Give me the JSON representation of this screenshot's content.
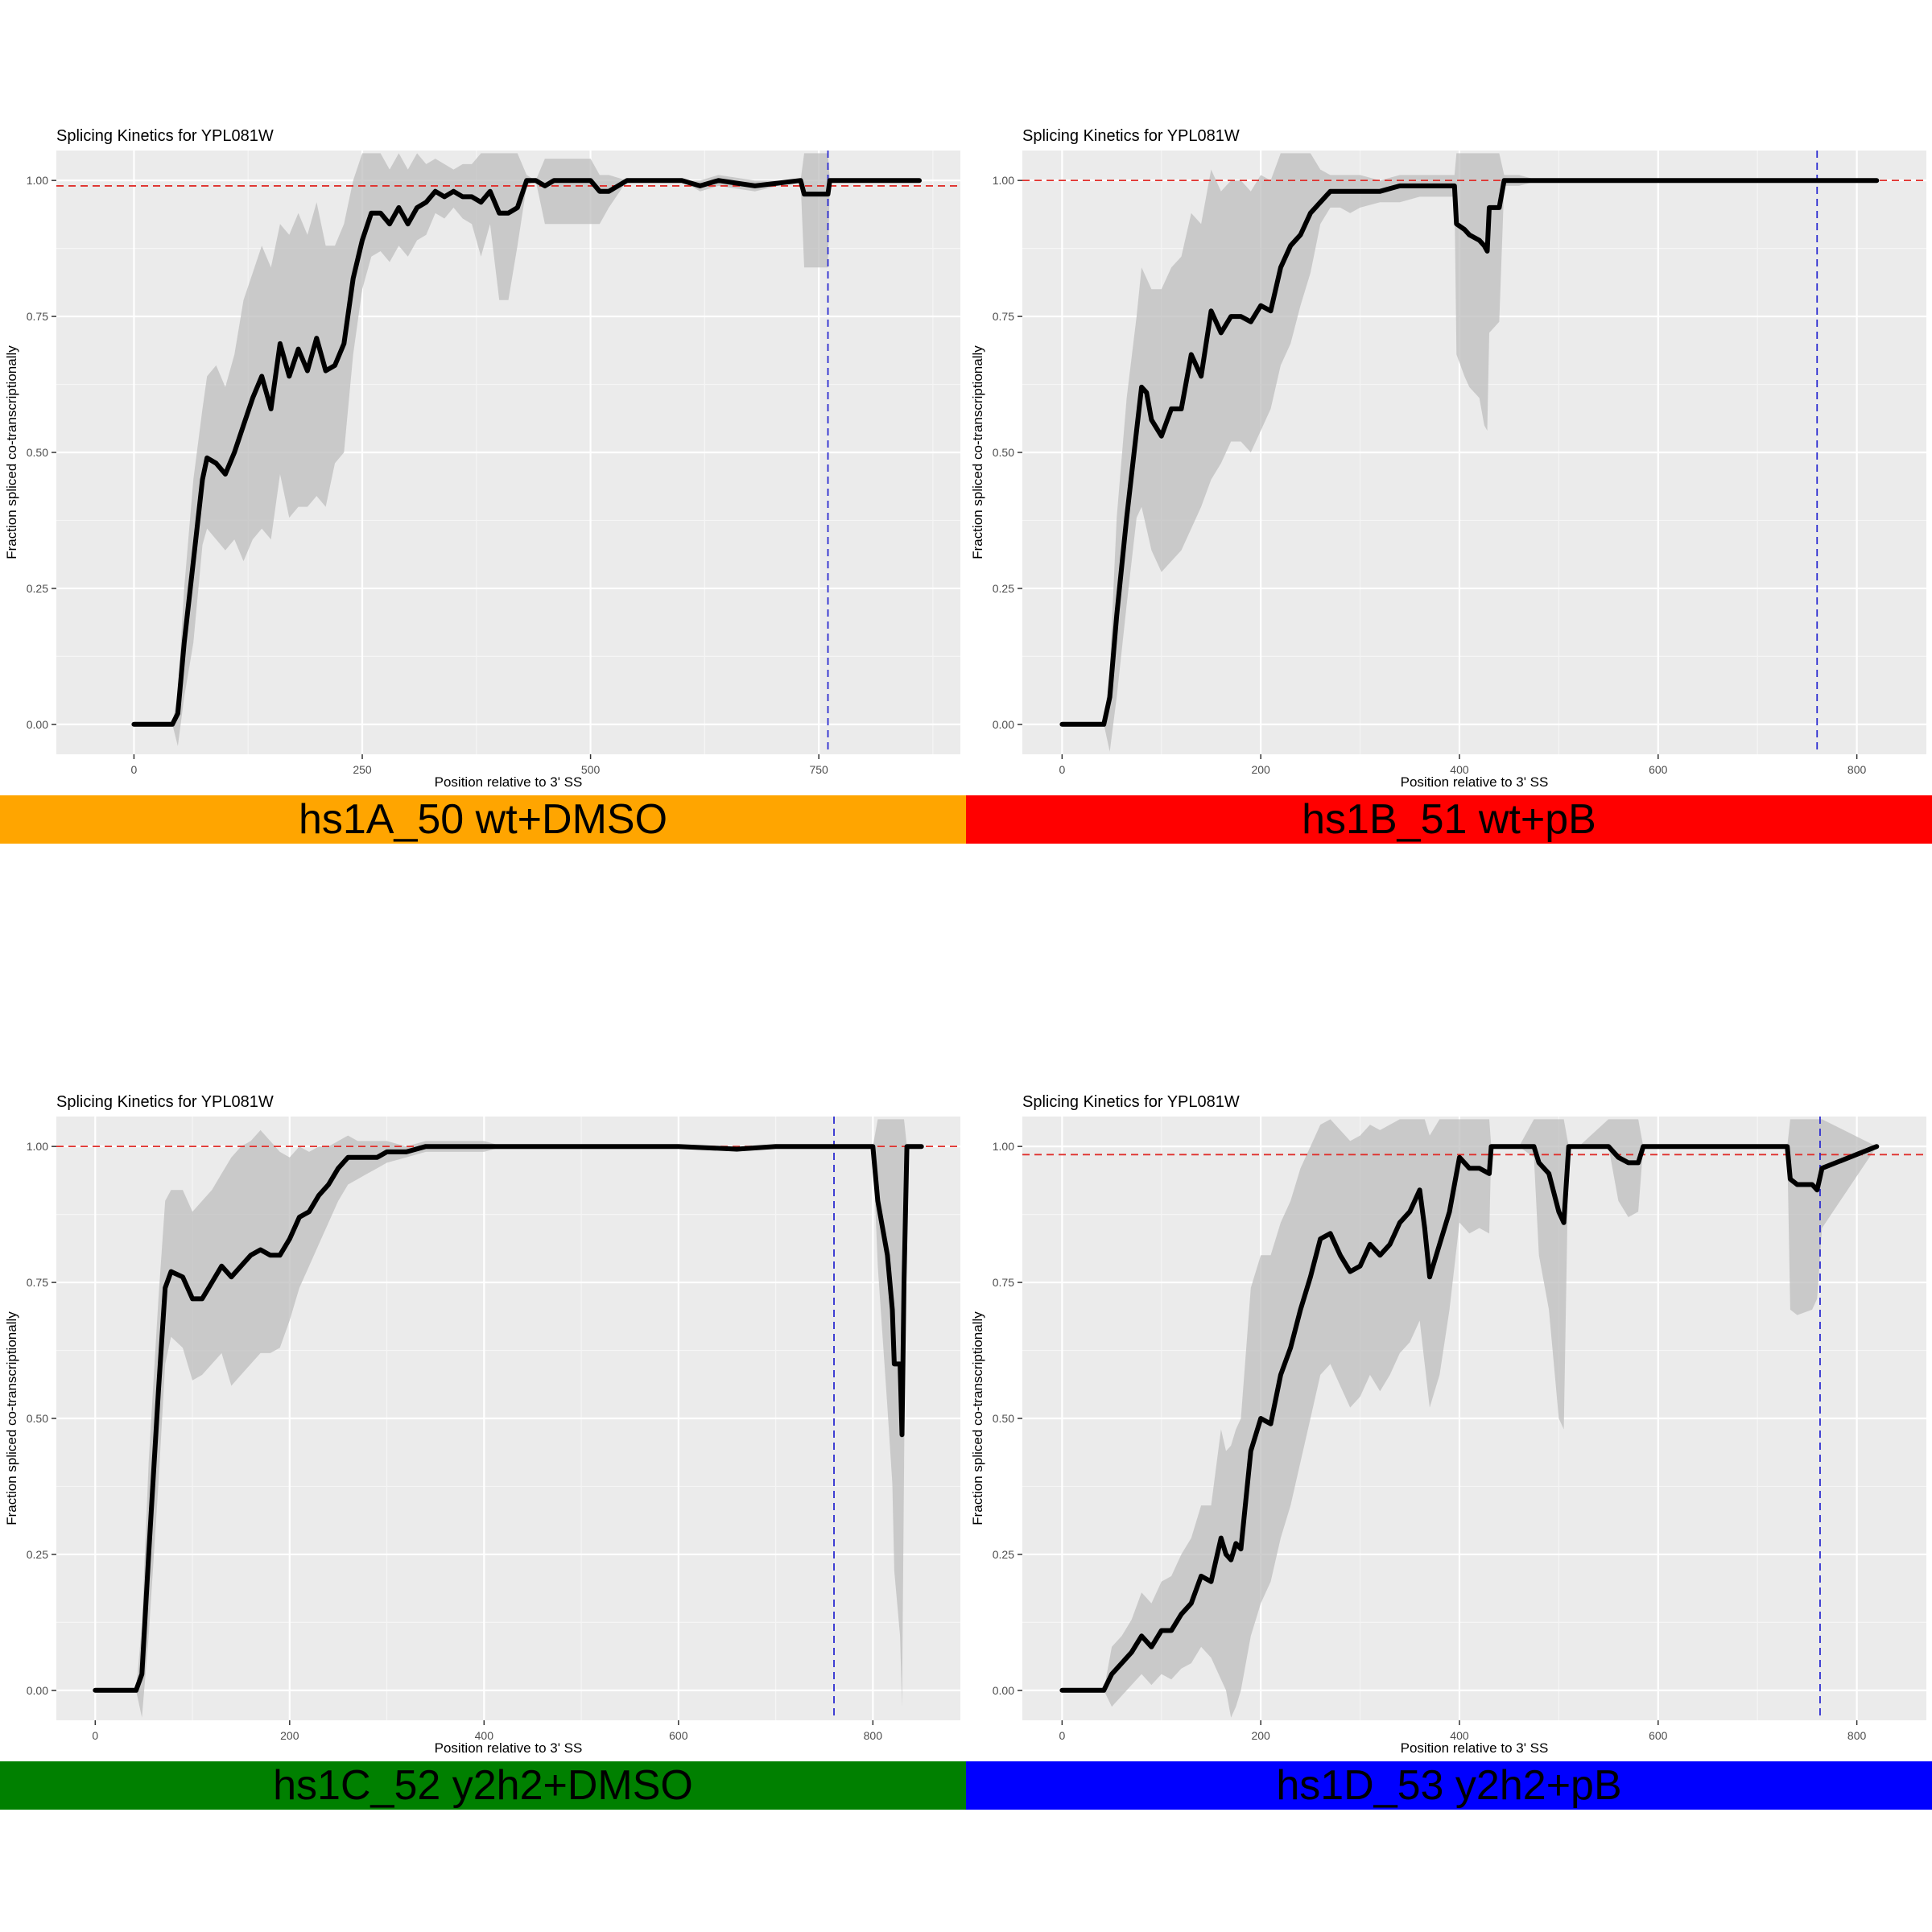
{
  "colors": {
    "orange": "#FFA500",
    "red": "#FF0000",
    "green": "#008000",
    "blue": "#0000FF"
  },
  "chart_data": [
    {
      "type": "line",
      "title": "Splicing Kinetics for YPL081W",
      "xlabel": "Position relative to 3' SS",
      "ylabel": "Fraction spliced co-transcriptionally",
      "banner": "hs1A_50 wt+DMSO",
      "banner_color": "#FFA500",
      "xlim": [
        -85,
        905
      ],
      "ylim": [
        -0.055,
        1.055
      ],
      "xticks": [
        0,
        250,
        500,
        750
      ],
      "yticks": [
        0.0,
        0.25,
        0.5,
        0.75,
        1.0
      ],
      "ytick_labels": [
        "0.00",
        "0.25",
        "0.50",
        "0.75",
        "1.00"
      ],
      "hline": 0.99,
      "vline": 760,
      "series": [
        {
          "x": [
            0,
            42,
            48,
            55,
            65,
            75,
            80,
            90,
            100,
            110,
            120,
            130,
            140,
            150,
            160,
            170,
            180,
            190,
            200,
            210,
            220,
            230,
            240,
            250,
            260,
            270,
            280,
            290,
            300,
            310,
            320,
            330,
            340,
            350,
            360,
            370,
            380,
            390,
            400,
            410,
            420,
            430,
            440,
            450,
            460,
            500,
            510,
            520,
            540,
            600,
            620,
            640,
            680,
            730,
            734,
            760,
            762,
            770,
            790,
            860
          ],
          "y": [
            0,
            0,
            0.02,
            0.15,
            0.3,
            0.45,
            0.49,
            0.48,
            0.46,
            0.5,
            0.55,
            0.6,
            0.64,
            0.58,
            0.7,
            0.64,
            0.69,
            0.65,
            0.71,
            0.65,
            0.66,
            0.7,
            0.82,
            0.89,
            0.94,
            0.94,
            0.92,
            0.95,
            0.92,
            0.95,
            0.96,
            0.98,
            0.97,
            0.98,
            0.97,
            0.97,
            0.96,
            0.98,
            0.94,
            0.94,
            0.95,
            1.0,
            1.0,
            0.99,
            1.0,
            1.0,
            0.98,
            0.98,
            1.0,
            1.0,
            0.99,
            1.0,
            0.99,
            1.0,
            0.975,
            0.975,
            1.0,
            1.0,
            1.0,
            1.0
          ],
          "lower": [
            0,
            0,
            -0.04,
            0.05,
            0.15,
            0.33,
            0.36,
            0.34,
            0.32,
            0.34,
            0.3,
            0.34,
            0.36,
            0.34,
            0.46,
            0.38,
            0.4,
            0.4,
            0.42,
            0.4,
            0.48,
            0.5,
            0.68,
            0.8,
            0.86,
            0.87,
            0.85,
            0.88,
            0.86,
            0.89,
            0.9,
            0.94,
            0.93,
            0.95,
            0.93,
            0.92,
            0.86,
            0.92,
            0.78,
            0.78,
            0.88,
            0.99,
            1.0,
            0.92,
            0.92,
            0.92,
            0.92,
            0.95,
            1.0,
            1.0,
            0.98,
            0.99,
            0.98,
            1.0,
            0.84,
            0.84,
            1.0,
            1.0,
            1.0,
            1.0
          ],
          "upper": [
            0,
            0,
            0.06,
            0.25,
            0.45,
            0.58,
            0.64,
            0.66,
            0.62,
            0.68,
            0.78,
            0.83,
            0.88,
            0.84,
            0.92,
            0.9,
            0.94,
            0.9,
            0.96,
            0.88,
            0.88,
            0.92,
            1.0,
            1.05,
            1.05,
            1.05,
            1.02,
            1.05,
            1.02,
            1.05,
            1.03,
            1.04,
            1.03,
            1.02,
            1.03,
            1.03,
            1.05,
            1.05,
            1.05,
            1.05,
            1.05,
            1.01,
            1.0,
            1.04,
            1.04,
            1.04,
            1.01,
            1.01,
            1.0,
            1.0,
            1.0,
            1.01,
            1.0,
            1.0,
            1.05,
            1.05,
            1.0,
            1.0,
            1.0,
            1.0
          ]
        }
      ]
    },
    {
      "type": "line",
      "title": "Splicing Kinetics for YPL081W",
      "xlabel": "Position relative to 3' SS",
      "ylabel": "Fraction spliced co-transcriptionally",
      "banner": "hs1B_51 wt+pB",
      "banner_color": "#FF0000",
      "xlim": [
        -40,
        870
      ],
      "ylim": [
        -0.055,
        1.055
      ],
      "xticks": [
        0,
        200,
        400,
        600,
        800
      ],
      "yticks": [
        0.0,
        0.25,
        0.5,
        0.75,
        1.0
      ],
      "ytick_labels": [
        "0.00",
        "0.25",
        "0.50",
        "0.75",
        "1.00"
      ],
      "hline": 1.0,
      "vline": 760,
      "series": [
        {
          "x": [
            0,
            42,
            48,
            55,
            65,
            75,
            80,
            85,
            90,
            100,
            110,
            120,
            130,
            140,
            150,
            160,
            170,
            180,
            190,
            200,
            210,
            220,
            230,
            240,
            250,
            260,
            270,
            280,
            290,
            300,
            320,
            340,
            360,
            380,
            395,
            397,
            405,
            410,
            420,
            425,
            428,
            430,
            440,
            445,
            460,
            480,
            500,
            820
          ],
          "y": [
            0,
            0,
            0.05,
            0.2,
            0.38,
            0.54,
            0.62,
            0.61,
            0.56,
            0.53,
            0.58,
            0.58,
            0.68,
            0.64,
            0.76,
            0.72,
            0.75,
            0.75,
            0.74,
            0.77,
            0.76,
            0.84,
            0.88,
            0.9,
            0.94,
            0.96,
            0.98,
            0.98,
            0.98,
            0.98,
            0.98,
            0.99,
            0.99,
            0.99,
            0.99,
            0.92,
            0.91,
            0.9,
            0.89,
            0.88,
            0.87,
            0.95,
            0.95,
            1.0,
            1.0,
            1.0,
            1.0,
            1.0
          ],
          "lower": [
            0,
            0,
            -0.05,
            0.05,
            0.22,
            0.38,
            0.4,
            0.36,
            0.32,
            0.28,
            0.3,
            0.32,
            0.36,
            0.4,
            0.45,
            0.48,
            0.52,
            0.52,
            0.5,
            0.54,
            0.58,
            0.66,
            0.7,
            0.77,
            0.83,
            0.92,
            0.95,
            0.95,
            0.94,
            0.95,
            0.96,
            0.96,
            0.97,
            0.97,
            0.97,
            0.68,
            0.64,
            0.62,
            0.6,
            0.55,
            0.54,
            0.72,
            0.74,
            0.99,
            0.99,
            1.0,
            1.0,
            1.0
          ],
          "upper": [
            0,
            0,
            0.1,
            0.38,
            0.6,
            0.75,
            0.84,
            0.82,
            0.8,
            0.8,
            0.84,
            0.86,
            0.94,
            0.92,
            1.02,
            0.98,
            1.0,
            1.0,
            0.98,
            1.01,
            1.0,
            1.05,
            1.05,
            1.05,
            1.05,
            1.02,
            1.01,
            1.01,
            1.01,
            1.01,
            1.0,
            1.01,
            1.01,
            1.01,
            1.01,
            1.05,
            1.05,
            1.05,
            1.05,
            1.05,
            1.05,
            1.05,
            1.05,
            1.01,
            1.01,
            1.0,
            1.0,
            1.0
          ]
        }
      ]
    },
    {
      "type": "line",
      "title": "Splicing Kinetics for YPL081W",
      "xlabel": "Position relative to 3' SS",
      "ylabel": "Fraction spliced co-transcriptionally",
      "banner": "hs1C_52 y2h2+DMSO",
      "banner_color": "#008000",
      "xlim": [
        -40,
        890
      ],
      "ylim": [
        -0.055,
        1.055
      ],
      "xticks": [
        0,
        200,
        400,
        600,
        800
      ],
      "yticks": [
        0.0,
        0.25,
        0.5,
        0.75,
        1.0
      ],
      "ytick_labels": [
        "0.00",
        "0.25",
        "0.50",
        "0.75",
        "1.00"
      ],
      "hline": 1.0,
      "vline": 760,
      "series": [
        {
          "x": [
            0,
            42,
            48,
            55,
            65,
            72,
            78,
            90,
            100,
            110,
            120,
            130,
            140,
            150,
            160,
            170,
            180,
            190,
            200,
            210,
            220,
            230,
            240,
            250,
            260,
            270,
            280,
            290,
            300,
            320,
            340,
            360,
            380,
            400,
            420,
            450,
            500,
            600,
            660,
            700,
            800,
            805,
            815,
            820,
            822,
            828,
            830,
            832,
            835,
            850
          ],
          "y": [
            0,
            0,
            0.03,
            0.25,
            0.55,
            0.74,
            0.77,
            0.76,
            0.72,
            0.72,
            0.75,
            0.78,
            0.76,
            0.78,
            0.8,
            0.81,
            0.8,
            0.8,
            0.83,
            0.87,
            0.88,
            0.91,
            0.93,
            0.96,
            0.98,
            0.98,
            0.98,
            0.98,
            0.99,
            0.99,
            1.0,
            1.0,
            1.0,
            1.0,
            1.0,
            1.0,
            1.0,
            1.0,
            0.995,
            1.0,
            1.0,
            0.9,
            0.8,
            0.7,
            0.6,
            0.6,
            0.47,
            0.75,
            1.0,
            1.0
          ],
          "lower": [
            0,
            0,
            -0.05,
            0.1,
            0.38,
            0.6,
            0.65,
            0.63,
            0.57,
            0.58,
            0.6,
            0.62,
            0.56,
            0.58,
            0.6,
            0.62,
            0.62,
            0.63,
            0.68,
            0.74,
            0.78,
            0.82,
            0.86,
            0.9,
            0.93,
            0.94,
            0.95,
            0.96,
            0.97,
            0.98,
            0.99,
            0.99,
            0.99,
            0.99,
            1.0,
            1.0,
            1.0,
            1.0,
            0.99,
            1.0,
            1.0,
            0.78,
            0.52,
            0.38,
            0.22,
            0.1,
            -0.03,
            0.4,
            1.0,
            1.0
          ],
          "upper": [
            0,
            0,
            0.12,
            0.42,
            0.72,
            0.9,
            0.92,
            0.92,
            0.88,
            0.9,
            0.92,
            0.95,
            0.98,
            1.0,
            1.01,
            1.03,
            1.01,
            0.99,
            0.98,
            1.0,
            0.99,
            1.0,
            1.0,
            1.01,
            1.02,
            1.01,
            1.01,
            1.01,
            1.01,
            1.0,
            1.01,
            1.01,
            1.01,
            1.01,
            1.0,
            1.0,
            1.0,
            1.0,
            1.0,
            1.0,
            1.0,
            1.05,
            1.05,
            1.05,
            1.05,
            1.05,
            1.05,
            1.05,
            1.0,
            1.0
          ]
        }
      ]
    },
    {
      "type": "line",
      "title": "Splicing Kinetics for YPL081W",
      "xlabel": "Position relative to 3' SS",
      "ylabel": "Fraction spliced co-transcriptionally",
      "banner": "hs1D_53 y2h2+pB",
      "banner_color": "#0000FF",
      "xlim": [
        -40,
        870
      ],
      "ylim": [
        -0.055,
        1.055
      ],
      "xticks": [
        0,
        200,
        400,
        600,
        800
      ],
      "yticks": [
        0.0,
        0.25,
        0.5,
        0.75,
        1.0
      ],
      "ytick_labels": [
        "0.00",
        "0.25",
        "0.50",
        "0.75",
        "1.00"
      ],
      "hline": 0.985,
      "vline": 763,
      "series": [
        {
          "x": [
            0,
            42,
            50,
            60,
            70,
            80,
            90,
            100,
            110,
            120,
            130,
            140,
            150,
            160,
            165,
            170,
            175,
            180,
            190,
            200,
            210,
            220,
            230,
            240,
            250,
            260,
            270,
            280,
            290,
            300,
            310,
            320,
            330,
            340,
            350,
            360,
            365,
            370,
            380,
            390,
            400,
            405,
            410,
            420,
            430,
            432,
            460,
            475,
            480,
            490,
            500,
            505,
            510,
            520,
            550,
            560,
            570,
            580,
            585,
            730,
            733,
            740,
            755,
            760,
            765,
            820
          ],
          "y": [
            0,
            0,
            0.03,
            0.05,
            0.07,
            0.1,
            0.08,
            0.11,
            0.11,
            0.14,
            0.16,
            0.21,
            0.2,
            0.28,
            0.25,
            0.24,
            0.27,
            0.26,
            0.44,
            0.5,
            0.49,
            0.58,
            0.63,
            0.7,
            0.76,
            0.83,
            0.84,
            0.8,
            0.77,
            0.78,
            0.82,
            0.8,
            0.82,
            0.86,
            0.88,
            0.92,
            0.85,
            0.76,
            0.82,
            0.88,
            0.98,
            0.97,
            0.96,
            0.96,
            0.95,
            1.0,
            1.0,
            1.0,
            0.97,
            0.95,
            0.88,
            0.86,
            1.0,
            1.0,
            1.0,
            0.98,
            0.97,
            0.97,
            1.0,
            1.0,
            0.94,
            0.93,
            0.93,
            0.92,
            0.96,
            1.0
          ],
          "lower": [
            0,
            0,
            -0.03,
            -0.01,
            0.01,
            0.03,
            0.01,
            0.03,
            0.02,
            0.04,
            0.05,
            0.08,
            0.06,
            0.02,
            0.0,
            -0.05,
            -0.03,
            0.0,
            0.1,
            0.16,
            0.2,
            0.28,
            0.34,
            0.42,
            0.5,
            0.58,
            0.6,
            0.56,
            0.52,
            0.54,
            0.58,
            0.55,
            0.58,
            0.62,
            0.64,
            0.68,
            0.6,
            0.52,
            0.58,
            0.7,
            0.86,
            0.85,
            0.84,
            0.85,
            0.84,
            1.0,
            1.0,
            0.98,
            0.8,
            0.7,
            0.5,
            0.48,
            1.0,
            1.0,
            1.0,
            0.9,
            0.87,
            0.88,
            1.0,
            1.0,
            0.7,
            0.69,
            0.7,
            0.72,
            0.85,
            1.0
          ],
          "upper": [
            0,
            0,
            0.08,
            0.1,
            0.13,
            0.18,
            0.16,
            0.2,
            0.21,
            0.25,
            0.28,
            0.34,
            0.34,
            0.48,
            0.44,
            0.45,
            0.48,
            0.5,
            0.74,
            0.8,
            0.8,
            0.86,
            0.9,
            0.96,
            1.0,
            1.04,
            1.05,
            1.03,
            1.01,
            1.02,
            1.04,
            1.03,
            1.04,
            1.05,
            1.05,
            1.05,
            1.05,
            1.02,
            1.05,
            1.05,
            1.05,
            1.05,
            1.05,
            1.05,
            1.05,
            1.0,
            1.0,
            1.05,
            1.05,
            1.05,
            1.05,
            1.05,
            1.0,
            1.0,
            1.05,
            1.05,
            1.05,
            1.05,
            1.0,
            1.0,
            1.05,
            1.05,
            1.05,
            1.05,
            1.05,
            1.0
          ]
        }
      ]
    }
  ]
}
